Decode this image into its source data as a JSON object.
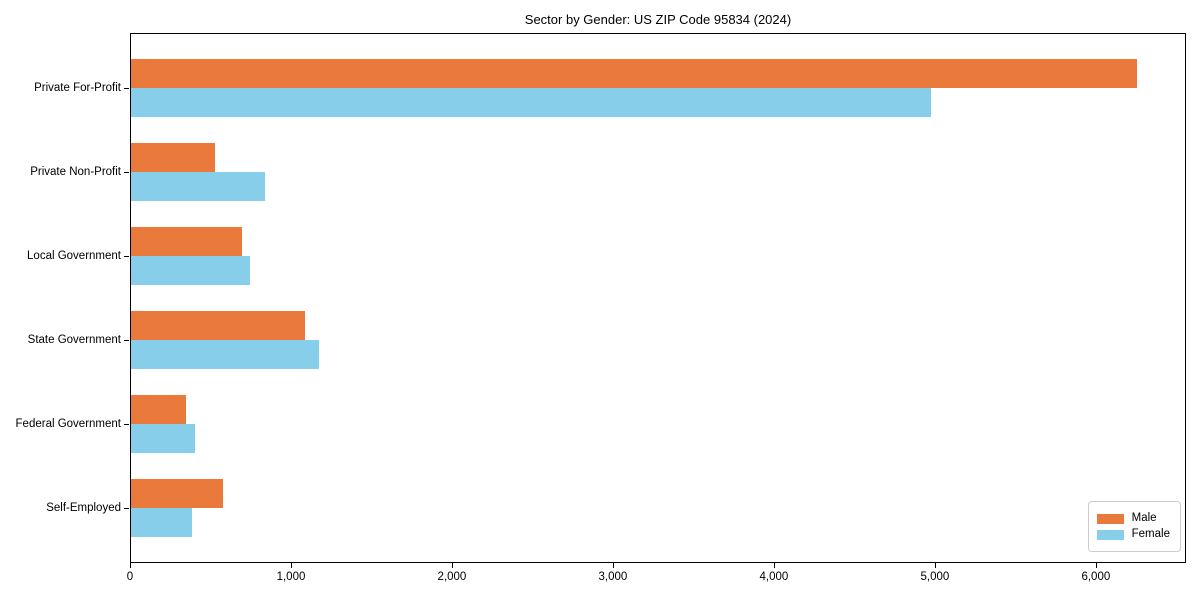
{
  "chart_data": {
    "type": "bar",
    "orientation": "horizontal",
    "title": "Sector by Gender: US ZIP Code 95834 (2024)",
    "categories": [
      "Private For-Profit",
      "Private Non-Profit",
      "Local Government",
      "State Government",
      "Federal Government",
      "Self-Employed"
    ],
    "series": [
      {
        "name": "Male",
        "color": "#EA7A3C",
        "values": [
          6250,
          520,
          690,
          1080,
          340,
          570
        ]
      },
      {
        "name": "Female",
        "color": "#87CEEB",
        "values": [
          4970,
          830,
          740,
          1170,
          400,
          380
        ]
      }
    ],
    "xlabel": "",
    "ylabel": "",
    "xlim": [
      0,
      6560
    ],
    "xticks": [
      0,
      1000,
      2000,
      3000,
      4000,
      5000,
      6000
    ],
    "xtick_labels": [
      "0",
      "1,000",
      "2,000",
      "3,000",
      "4,000",
      "5,000",
      "6,000"
    ],
    "grid": false,
    "legend": {
      "position": "lower right",
      "entries": [
        "Male",
        "Female"
      ]
    }
  }
}
